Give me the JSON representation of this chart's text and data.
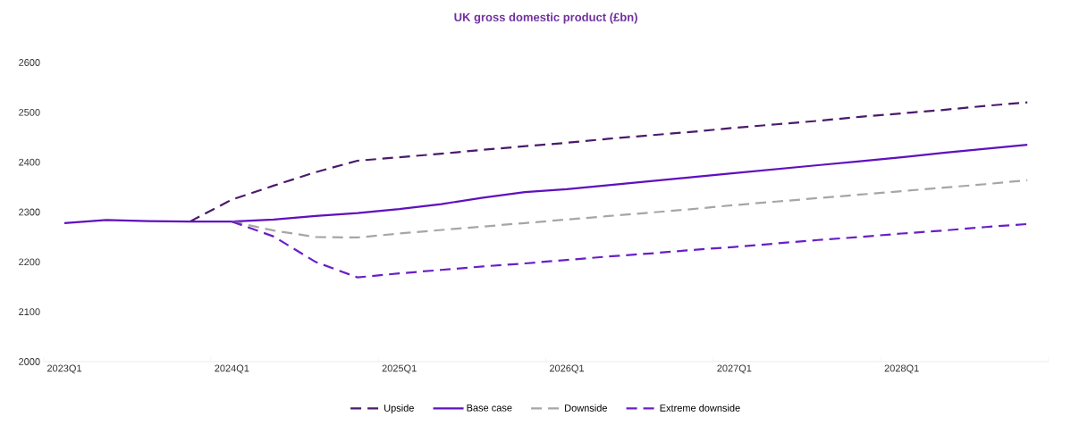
{
  "chart_data": {
    "type": "line",
    "title": "UK gross domestic product (£bn)",
    "categories": [
      "2023Q1",
      null,
      null,
      null,
      "2024Q1",
      null,
      null,
      null,
      "2025Q1",
      null,
      null,
      null,
      "2026Q1",
      null,
      null,
      null,
      "2027Q1",
      null,
      null,
      null,
      "2028Q1",
      null,
      null,
      null
    ],
    "ylim": [
      2000,
      2600
    ],
    "yticks": [
      2000,
      2100,
      2200,
      2300,
      2400,
      2500,
      2600
    ],
    "legend": "bottom",
    "series": [
      {
        "name": "Upside",
        "color": "#4b1a6b",
        "line_style": "dashed",
        "values": [
          null,
          null,
          null,
          2281,
          2325,
          2353,
          2380,
          2403,
          2410,
          2417,
          2425,
          2432,
          2439,
          2447,
          2454,
          2461,
          2469,
          2476,
          2483,
          2491,
          2498,
          2505,
          2513,
          2520
        ]
      },
      {
        "name": "Base case",
        "color": "#5f10bf",
        "line_style": "solid",
        "values": [
          2278,
          2284,
          2282,
          2281,
          2281,
          2285,
          2292,
          2298,
          2306,
          2316,
          2329,
          2340,
          2346,
          2354,
          2362,
          2370,
          2378,
          2386,
          2394,
          2402,
          2410,
          2419,
          2427,
          2435
        ]
      },
      {
        "name": "Downside",
        "color": "#a6a6a6",
        "line_style": "dashed",
        "values": [
          null,
          null,
          null,
          null,
          2281,
          2263,
          2250,
          2249,
          2257,
          2264,
          2271,
          2278,
          2285,
          2292,
          2299,
          2306,
          2314,
          2321,
          2328,
          2335,
          2342,
          2349,
          2356,
          2364
        ]
      },
      {
        "name": "Extreme downside",
        "color": "#6a1fc6",
        "line_style": "dashed",
        "values": [
          null,
          null,
          null,
          null,
          2281,
          2251,
          2200,
          2169,
          2177,
          2184,
          2191,
          2197,
          2204,
          2211,
          2217,
          2224,
          2230,
          2237,
          2244,
          2250,
          2257,
          2263,
          2270,
          2276
        ]
      }
    ]
  }
}
